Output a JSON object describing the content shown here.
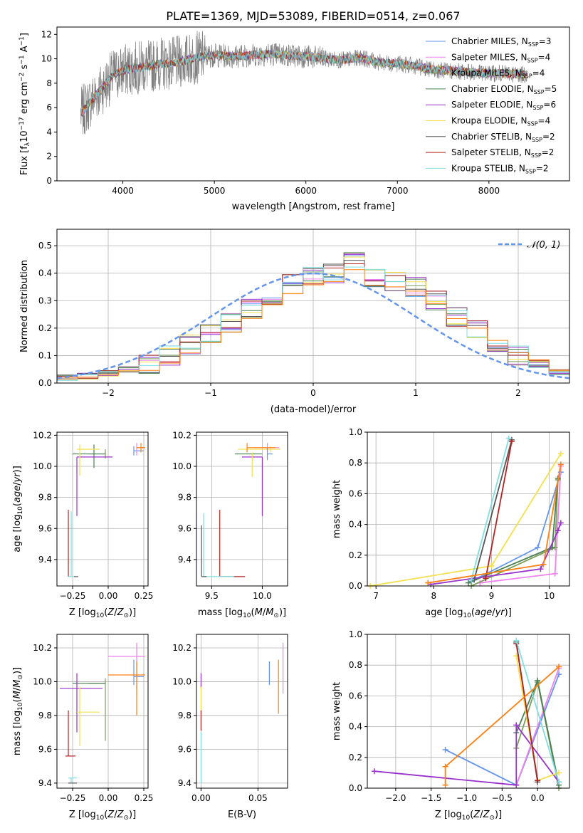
{
  "figure_title": "PLATE=1369, MJD=53089, FIBERID=0514, z=0.067",
  "colors": {
    "grid": "#b0b0b0",
    "series": [
      "#6495ed",
      "#ee82ee",
      "#7ba05b",
      "#4b7f52",
      "#9932cc",
      "#f4e04d",
      "#555555",
      "#b22222",
      "#80dfe0",
      "#ff7f0e"
    ],
    "spectrum_data": "#808080",
    "normal_curve": "#6495ed"
  },
  "chart_data": [
    {
      "type": "line",
      "id": "spectrum",
      "title": "PLATE=1369, MJD=53089, FIBERID=0514, z=0.067",
      "xlabel": "wavelength [Angstrom, rest frame]",
      "ylabel": "Flux [f",
      "xlim": [
        3280,
        8880
      ],
      "ylim": [
        0,
        12.6
      ],
      "xticks": [
        4000,
        5000,
        6000,
        7000,
        8000
      ],
      "yticks": [
        0,
        2,
        4,
        6,
        8,
        10,
        12
      ],
      "grid": false,
      "legend_position": "top-right",
      "legend": [
        {
          "label": "Chabrier MILES, N",
          "n": "3",
          "color": "#6495ed"
        },
        {
          "label": "Salpeter MILES, N",
          "n": "4",
          "color": "#ee82ee"
        },
        {
          "label": "Kroupa MILES, N",
          "n": "4",
          "color": "#7ba05b"
        },
        {
          "label": "Chabrier ELODIE, N",
          "n": "5",
          "color": "#4b7f52"
        },
        {
          "label": "Salpeter ELODIE, N",
          "n": "6",
          "color": "#9932cc"
        },
        {
          "label": "Kroupa ELODIE, N",
          "n": "4",
          "color": "#f4e04d"
        },
        {
          "label": "Chabrier STELIB, N",
          "n": "2",
          "color": "#555555"
        },
        {
          "label": "Salpeter STELIB, N",
          "n": "2",
          "color": "#b22222"
        },
        {
          "label": "Kroupa STELIB, N",
          "n": "2",
          "color": "#80dfe0"
        }
      ],
      "model_envelope": {
        "x": [
          3540,
          3600,
          3700,
          3800,
          3900,
          4000,
          4100,
          4200,
          4300,
          4400,
          4500,
          4600,
          4700,
          4800,
          4900,
          5000,
          5200,
          5400,
          5600,
          5800,
          6000,
          6200,
          6400,
          6600,
          6800,
          7000,
          7200,
          7400,
          7600,
          7800,
          8000,
          8200,
          8400
        ],
        "y": [
          5.5,
          6.0,
          7.0,
          7.8,
          8.7,
          9.0,
          9.2,
          9.3,
          9.4,
          9.6,
          9.6,
          9.7,
          9.9,
          10.1,
          10.2,
          10.3,
          10.2,
          10.3,
          10.4,
          10.3,
          10.2,
          10.0,
          9.9,
          10.1,
          9.7,
          9.6,
          9.4,
          9.1,
          9.0,
          8.9,
          8.8,
          8.8,
          8.7
        ]
      },
      "data_ranges": {
        "x": [
          3540,
          8420
        ],
        "y": [
          0,
          12.6
        ]
      }
    },
    {
      "type": "histogram",
      "id": "residuals",
      "xlabel": "(data-model)/error",
      "ylabel": "Normed distribution",
      "xlim": [
        -2.5,
        2.5
      ],
      "ylim": [
        0,
        0.56
      ],
      "xticks": [
        -2,
        -1,
        0,
        1,
        2
      ],
      "yticks": [
        0.0,
        0.1,
        0.2,
        0.3,
        0.4,
        0.5
      ],
      "grid": true,
      "legend_position": "top-right",
      "legend": [
        {
          "label": "𝒩(0, 1)",
          "color": "#6495ed",
          "style": "dashed"
        }
      ],
      "bin_edges": [
        -2.5,
        -2.3,
        -2.1,
        -1.9,
        -1.7,
        -1.5,
        -1.3,
        -1.1,
        -0.9,
        -0.7,
        -0.5,
        -0.3,
        -0.1,
        0.1,
        0.3,
        0.5,
        0.7,
        0.9,
        1.1,
        1.3,
        1.5,
        1.7,
        1.9,
        2.1,
        2.3,
        2.5
      ],
      "heights": [
        0.02,
        0.025,
        0.035,
        0.05,
        0.07,
        0.1,
        0.14,
        0.18,
        0.22,
        0.27,
        0.32,
        0.36,
        0.39,
        0.4,
        0.44,
        0.38,
        0.37,
        0.35,
        0.3,
        0.24,
        0.2,
        0.15,
        0.1,
        0.07,
        0.04,
        0.03
      ]
    },
    {
      "type": "errorbar",
      "id": "age_vs_Z",
      "xlabel": "Z [log",
      "ylabel": "age  [log",
      "xlim": [
        -0.36,
        0.28
      ],
      "ylim": [
        9.23,
        10.22
      ],
      "xticks": [
        -0.25,
        0.0,
        0.25
      ],
      "yticks": [
        9.4,
        9.6,
        9.8,
        10.0,
        10.2
      ],
      "grid": true,
      "points": [
        {
          "x": -0.02,
          "y": 10.08,
          "xerr": [
            0.12,
            0.0
          ],
          "yerr": [
            0.03,
            0.03
          ],
          "color": "#7ba05b"
        },
        {
          "x": -0.1,
          "y": 10.08,
          "xerr": [
            0.15,
            0.08
          ],
          "yerr": [
            0.09,
            0.06
          ],
          "color": "#4b7f52"
        },
        {
          "x": -0.22,
          "y": 10.06,
          "xerr": [
            0.0,
            0.25
          ],
          "yerr": [
            0.38,
            0.0
          ],
          "color": "#9932cc"
        },
        {
          "x": -0.2,
          "y": 10.11,
          "xerr": [
            0.02,
            0.14
          ],
          "yerr": [
            0.17,
            0.03
          ],
          "color": "#f4e04d"
        },
        {
          "x": 0.18,
          "y": 10.1,
          "xerr": [
            0.0,
            0.07
          ],
          "yerr": [
            0.03,
            0.03
          ],
          "color": "#6495ed"
        },
        {
          "x": 0.2,
          "y": 10.12,
          "xerr": [
            0.0,
            0.06
          ],
          "yerr": [
            0.05,
            0.03
          ],
          "color": "#ee82ee"
        },
        {
          "x": 0.23,
          "y": 10.12,
          "xerr": [
            0.03,
            0.03
          ],
          "yerr": [
            0.03,
            0.03
          ],
          "color": "#ff7f0e"
        },
        {
          "x": -0.28,
          "y": 9.29,
          "xerr": [
            0.0,
            0.0
          ],
          "yerr": [
            0.0,
            0.43
          ],
          "color": "#b22222"
        },
        {
          "x": -0.26,
          "y": 9.29,
          "xerr": [
            0.02,
            0.02
          ],
          "yerr": [
            0.0,
            0.42
          ],
          "color": "#80dfe0"
        },
        {
          "x": -0.24,
          "y": 9.29,
          "xerr": [
            0.0,
            0.03
          ],
          "yerr": [
            0.0,
            0.0
          ],
          "color": "#555555"
        }
      ]
    },
    {
      "type": "errorbar",
      "id": "age_vs_mass",
      "xlabel": "mass [log",
      "ylabel": "",
      "xlim": [
        9.35,
        10.25
      ],
      "ylim": [
        9.23,
        10.22
      ],
      "xticks": [
        9.5,
        10.0
      ],
      "yticks": [
        9.4,
        9.6,
        9.8,
        10.0,
        10.2
      ],
      "grid": true,
      "points": [
        {
          "x": 10.08,
          "y": 10.11,
          "xerr": [
            0.32,
            0.1
          ],
          "yerr": [
            0.02,
            0.02
          ],
          "color": "#f4e04d"
        },
        {
          "x": 10.05,
          "y": 10.12,
          "xerr": [
            0.13,
            0.12
          ],
          "yerr": [
            0.03,
            0.03
          ],
          "color": "#ee82ee"
        },
        {
          "x": 9.85,
          "y": 10.12,
          "xerr": [
            0.0,
            0.28
          ],
          "yerr": [
            0.03,
            0.03
          ],
          "color": "#ff7f0e"
        },
        {
          "x": 10.0,
          "y": 10.06,
          "xerr": [
            0.2,
            0.0
          ],
          "yerr": [
            0.38,
            0.0
          ],
          "color": "#9932cc"
        },
        {
          "x": 9.93,
          "y": 10.08,
          "xerr": [
            0.2,
            0.07
          ],
          "yerr": [
            0.0,
            0.0
          ],
          "color": "#4b7f52"
        },
        {
          "x": 10.05,
          "y": 10.08,
          "xerr": [
            0.0,
            0.05
          ],
          "yerr": [
            0.04,
            0.04
          ],
          "color": "#6495ed"
        },
        {
          "x": 9.9,
          "y": 10.09,
          "xerr": [
            0.0,
            0.0
          ],
          "yerr": [
            0.16,
            0.0
          ],
          "color": "#f4e04d"
        },
        {
          "x": 9.58,
          "y": 9.29,
          "xerr": [
            0.0,
            0.25
          ],
          "yerr": [
            0.0,
            0.43
          ],
          "color": "#b22222"
        },
        {
          "x": 9.42,
          "y": 9.29,
          "xerr": [
            0.0,
            0.3
          ],
          "yerr": [
            0.0,
            0.41
          ],
          "color": "#80dfe0"
        },
        {
          "x": 9.4,
          "y": 9.29,
          "xerr": [
            0.0,
            0.05
          ],
          "yerr": [
            0.0,
            0.33
          ],
          "color": "#555555"
        }
      ]
    },
    {
      "type": "line",
      "id": "massweight_vs_age",
      "xlabel": "age  [log",
      "ylabel": "mass weight",
      "xlim": [
        6.85,
        10.35
      ],
      "ylim": [
        0,
        1
      ],
      "xticks": [
        7,
        8,
        9,
        10
      ],
      "yticks": [
        0.0,
        0.2,
        0.4,
        0.6,
        0.8,
        1.0
      ],
      "grid": true,
      "series": [
        {
          "color": "#6495ed",
          "x": [
            8.65,
            9.8,
            10.2
          ],
          "y": [
            0.03,
            0.25,
            0.74
          ]
        },
        {
          "color": "#ee82ee",
          "x": [
            8.8,
            10.1,
            10.2
          ],
          "y": [
            0.02,
            0.08,
            0.78
          ]
        },
        {
          "color": "#7ba05b",
          "x": [
            8.65,
            10.1,
            10.15
          ],
          "y": [
            0.0,
            0.25,
            0.69
          ]
        },
        {
          "color": "#4b7f52",
          "x": [
            8.6,
            10.05,
            10.15
          ],
          "y": [
            0.02,
            0.25,
            0.7
          ]
        },
        {
          "color": "#9932cc",
          "x": [
            7.95,
            9.85,
            10.15,
            10.2
          ],
          "y": [
            0.01,
            0.11,
            0.36,
            0.41
          ]
        },
        {
          "color": "#f4e04d",
          "x": [
            6.9,
            9.0,
            10.2
          ],
          "y": [
            0.0,
            0.13,
            0.86
          ]
        },
        {
          "color": "#555555",
          "x": [
            8.7,
            9.35
          ],
          "y": [
            0.04,
            0.95
          ]
        },
        {
          "color": "#b22222",
          "x": [
            8.9,
            9.35
          ],
          "y": [
            0.05,
            0.94
          ]
        },
        {
          "color": "#80dfe0",
          "x": [
            8.65,
            9.3
          ],
          "y": [
            0.04,
            0.96
          ]
        },
        {
          "color": "#ff7f0e",
          "x": [
            7.9,
            9.9,
            10.2
          ],
          "y": [
            0.02,
            0.14,
            0.79
          ]
        }
      ]
    },
    {
      "type": "errorbar",
      "id": "mass_vs_Z",
      "xlabel": "Z [log",
      "ylabel": "mass [log",
      "xlim": [
        -0.36,
        0.28
      ],
      "ylim": [
        9.37,
        10.28
      ],
      "xticks": [
        -0.25,
        0.0,
        0.25
      ],
      "yticks": [
        9.4,
        9.6,
        9.8,
        10.0,
        10.2
      ],
      "grid": true,
      "points": [
        {
          "x": -0.02,
          "y": 9.99,
          "xerr": [
            0.12,
            0.0
          ],
          "yerr": [
            0.34,
            0.03
          ],
          "color": "#7ba05b"
        },
        {
          "x": -0.1,
          "y": 9.99,
          "xerr": [
            0.15,
            0.08
          ],
          "yerr": [
            0.0,
            0.0
          ],
          "color": "#4b7f52"
        },
        {
          "x": -0.22,
          "y": 9.96,
          "xerr": [
            0.12,
            0.18
          ],
          "yerr": [
            0.26,
            0.09
          ],
          "color": "#9932cc"
        },
        {
          "x": -0.2,
          "y": 9.82,
          "xerr": [
            0.02,
            0.14
          ],
          "yerr": [
            0.2,
            0.15
          ],
          "color": "#f4e04d"
        },
        {
          "x": 0.18,
          "y": 10.03,
          "xerr": [
            0.0,
            0.07
          ],
          "yerr": [
            0.05,
            0.1
          ],
          "color": "#6495ed"
        },
        {
          "x": 0.2,
          "y": 10.15,
          "xerr": [
            0.2,
            0.06
          ],
          "yerr": [
            0.2,
            0.08
          ],
          "color": "#ee82ee"
        },
        {
          "x": 0.2,
          "y": 10.04,
          "xerr": [
            0.2,
            0.06
          ],
          "yerr": [
            0.24,
            0.08
          ],
          "color": "#ff7f0e"
        },
        {
          "x": -0.28,
          "y": 9.56,
          "xerr": [
            0.02,
            0.05
          ],
          "yerr": [
            0.0,
            0.27
          ],
          "color": "#b22222"
        },
        {
          "x": -0.26,
          "y": 9.43,
          "xerr": [
            0.02,
            0.04
          ],
          "yerr": [
            0.03,
            0.0
          ],
          "color": "#80dfe0"
        },
        {
          "x": -0.26,
          "y": 9.4,
          "xerr": [
            0.02,
            0.04
          ],
          "yerr": [
            0.0,
            0.0
          ],
          "color": "#555555"
        }
      ]
    },
    {
      "type": "errorbar",
      "id": "mass_vs_ebv",
      "xlabel": "E(B-V)",
      "ylabel": "",
      "xlim": [
        -0.004,
        0.076
      ],
      "ylim": [
        9.37,
        10.28
      ],
      "xticks": [
        0.0,
        0.05
      ],
      "yticks": [
        9.4,
        9.6,
        9.8,
        10.0,
        10.2
      ],
      "grid": true,
      "points": [
        {
          "x": 0.0,
          "y": 9.99,
          "xerr": [
            0.0,
            0.0
          ],
          "yerr": [
            0.03,
            0.06
          ],
          "color": "#9932cc"
        },
        {
          "x": 0.0,
          "y": 9.82,
          "xerr": [
            0.0,
            0.0
          ],
          "yerr": [
            0.1,
            0.15
          ],
          "color": "#f4e04d"
        },
        {
          "x": 0.0,
          "y": 9.77,
          "xerr": [
            0.0,
            0.0
          ],
          "yerr": [
            0.06,
            0.06
          ],
          "color": "#b22222"
        },
        {
          "x": 0.0,
          "y": 9.55,
          "xerr": [
            0.0,
            0.0
          ],
          "yerr": [
            0.15,
            0.15
          ],
          "color": "#80dfe0"
        },
        {
          "x": 0.06,
          "y": 10.05,
          "xerr": [
            0.0,
            0.0
          ],
          "yerr": [
            0.07,
            0.07
          ],
          "color": "#6495ed"
        },
        {
          "x": 0.068,
          "y": 9.97,
          "xerr": [
            0.0,
            0.0
          ],
          "yerr": [
            0.16,
            0.16
          ],
          "color": "#ff7f0e"
        },
        {
          "x": 0.072,
          "y": 10.08,
          "xerr": [
            0.0,
            0.0
          ],
          "yerr": [
            0.15,
            0.15
          ],
          "color": "#ee82ee"
        }
      ]
    },
    {
      "type": "line",
      "id": "massweight_vs_Z",
      "xlabel": "Z [log",
      "ylabel": "mass weight",
      "xlim": [
        -2.4,
        0.45
      ],
      "ylim": [
        0,
        1
      ],
      "xticks": [
        -2.0,
        -1.5,
        -1.0,
        -0.5,
        0.0
      ],
      "yticks": [
        0.0,
        0.2,
        0.4,
        0.6,
        0.8,
        1.0
      ],
      "grid": true,
      "series": [
        {
          "color": "#6495ed",
          "x": [
            -1.3,
            -0.3,
            0.3
          ],
          "y": [
            0.25,
            0.02,
            0.74
          ]
        },
        {
          "color": "#ee82ee",
          "x": [
            -0.3,
            0.3
          ],
          "y": [
            0.02,
            0.78
          ]
        },
        {
          "color": "#7ba05b",
          "x": [
            -0.3,
            0.0,
            0.3
          ],
          "y": [
            0.26,
            0.69,
            0.0
          ]
        },
        {
          "color": "#4b7f52",
          "x": [
            -0.3,
            0.0,
            0.3
          ],
          "y": [
            0.36,
            0.7,
            0.02
          ]
        },
        {
          "color": "#9932cc",
          "x": [
            -2.3,
            -0.3,
            -0.3,
            0.3
          ],
          "y": [
            0.11,
            0.02,
            0.41,
            0.04
          ]
        },
        {
          "color": "#f4e04d",
          "x": [
            -0.3,
            0.0,
            0.3
          ],
          "y": [
            0.86,
            0.05,
            0.1
          ]
        },
        {
          "color": "#555555",
          "x": [
            -0.3,
            0.0
          ],
          "y": [
            0.95,
            0.04
          ]
        },
        {
          "color": "#b22222",
          "x": [
            -0.3,
            0.0
          ],
          "y": [
            0.94,
            0.05
          ]
        },
        {
          "color": "#80dfe0",
          "x": [
            -0.3,
            0.3
          ],
          "y": [
            0.96,
            0.04
          ]
        },
        {
          "color": "#ff7f0e",
          "x": [
            -1.3,
            -1.3,
            0.3
          ],
          "y": [
            0.02,
            0.14,
            0.79
          ]
        }
      ]
    }
  ]
}
